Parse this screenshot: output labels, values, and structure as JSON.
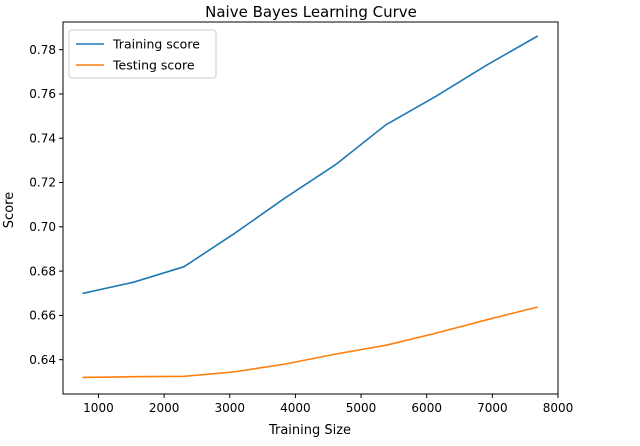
{
  "chart_data": {
    "type": "line",
    "title": "Naive Bayes Learning Curve",
    "xlabel": "Training Size",
    "ylabel": "Score",
    "xlim": [
      460,
      8000
    ],
    "ylim": [
      0.6245,
      0.7925
    ],
    "xticks": [
      1000,
      2000,
      3000,
      4000,
      5000,
      6000,
      7000,
      8000
    ],
    "yticks": [
      0.64,
      0.66,
      0.68,
      0.7,
      0.72,
      0.74,
      0.76,
      0.78
    ],
    "x": [
      768,
      1536,
      2304,
      3072,
      3840,
      4608,
      5376,
      6144,
      6912,
      7680
    ],
    "series": [
      {
        "name": "Training score",
        "color": "#1f77b4",
        "values": [
          0.67,
          0.675,
          0.682,
          0.697,
          0.713,
          0.728,
          0.746,
          0.759,
          0.773,
          0.786
        ]
      },
      {
        "name": "Testing score",
        "color": "#ff7f0e",
        "values": [
          0.632,
          0.6323,
          0.6325,
          0.6345,
          0.638,
          0.6425,
          0.6465,
          0.652,
          0.658,
          0.6637
        ]
      }
    ],
    "grid": false,
    "legend_position": "top-left"
  }
}
